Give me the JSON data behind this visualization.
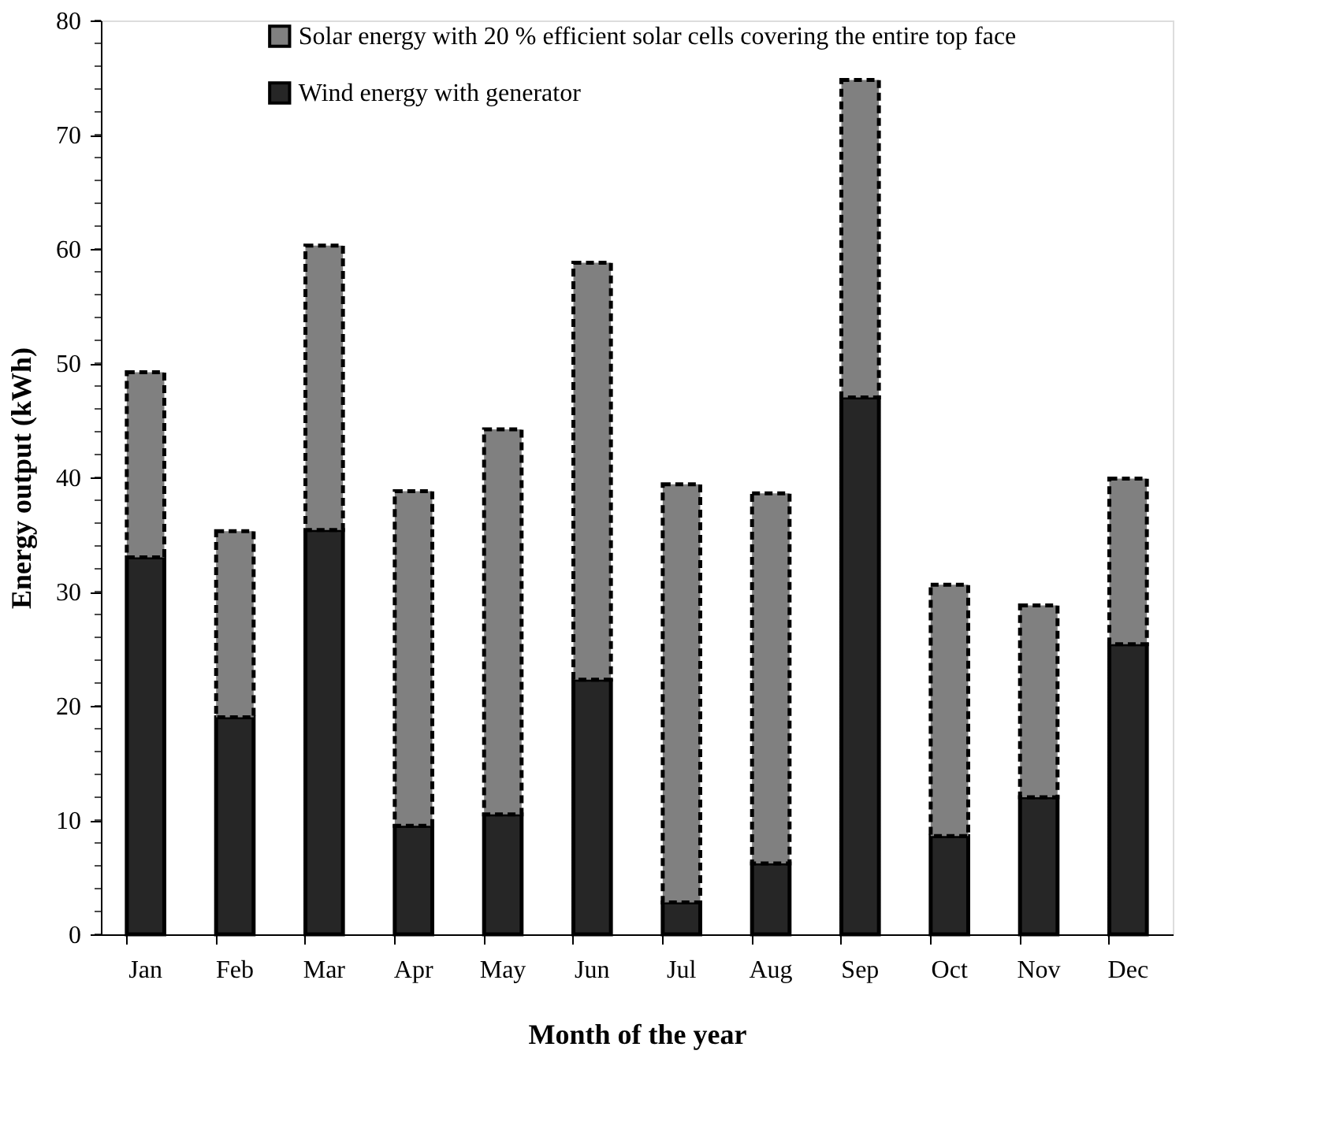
{
  "chart_data": {
    "type": "bar",
    "stacked": true,
    "xlabel": "Month of the year",
    "ylabel": "Energy output (kWh)",
    "categories": [
      "Jan",
      "Feb",
      "Mar",
      "Apr",
      "May",
      "Jun",
      "Jul",
      "Aug",
      "Sep",
      "Oct",
      "Nov",
      "Dec"
    ],
    "series": [
      {
        "name": "Wind energy with generator",
        "color": "#262626",
        "line_style": "solid",
        "values": [
          33.0,
          19.0,
          35.4,
          9.5,
          10.5,
          22.3,
          2.8,
          6.2,
          47.0,
          8.6,
          12.0,
          25.4
        ]
      },
      {
        "name": "Solar energy with 20 % efficient solar cells covering the entire top face",
        "color": "#808080",
        "line_style": "dashed",
        "values": [
          16.2,
          16.3,
          24.9,
          29.3,
          33.7,
          36.5,
          36.6,
          32.4,
          27.8,
          22.0,
          16.8,
          14.5
        ]
      }
    ],
    "ylim": [
      0,
      80
    ],
    "yticks": [
      0,
      10,
      20,
      30,
      40,
      50,
      60,
      70,
      80
    ],
    "grid": false,
    "legend": "top"
  }
}
